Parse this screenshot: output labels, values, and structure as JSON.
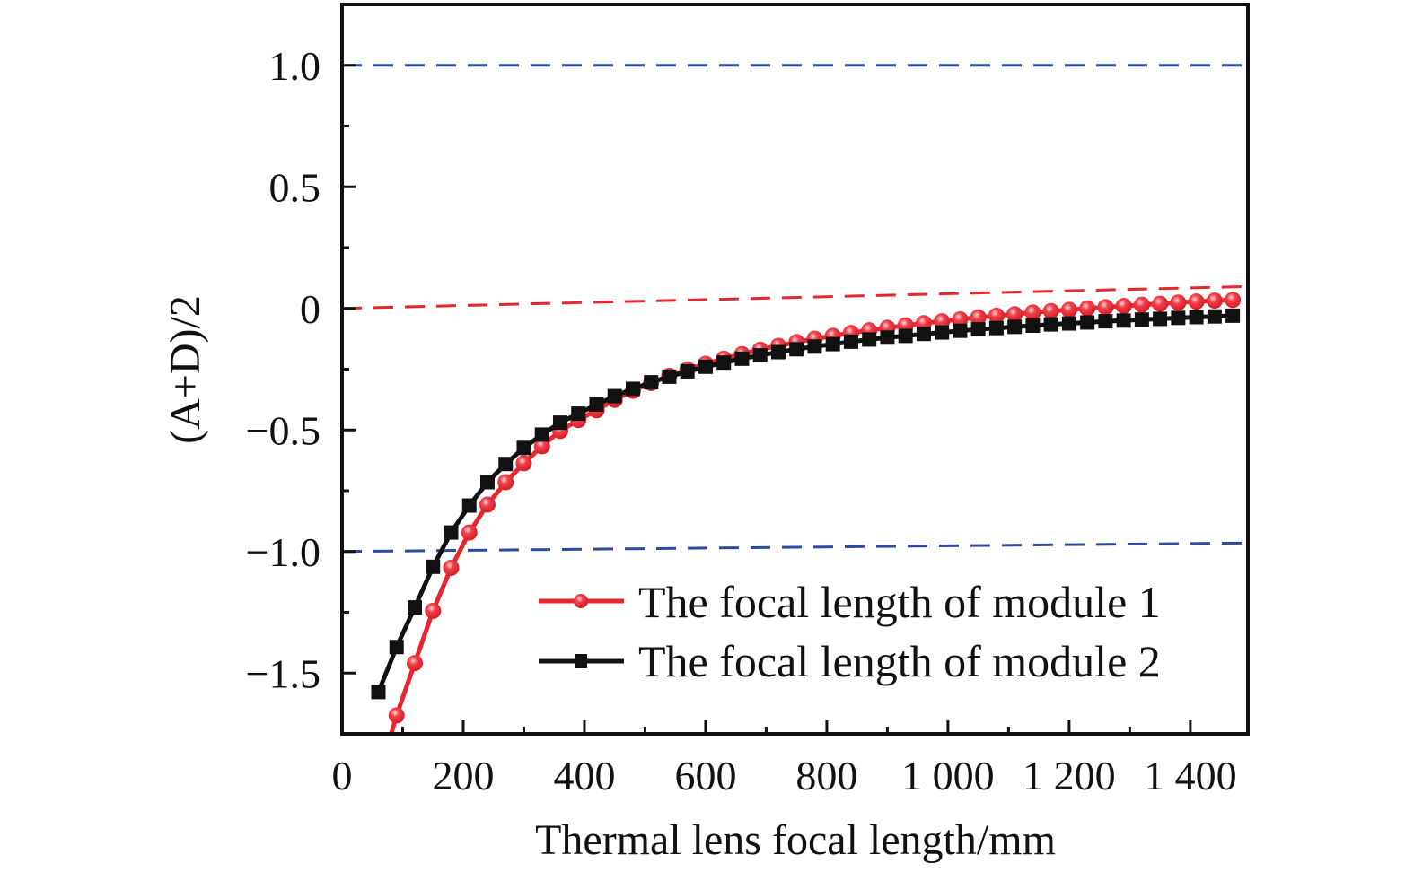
{
  "chart_data": {
    "type": "line",
    "title": "",
    "xlabel": "Thermal lens focal length/mm",
    "ylabel": "(A+D)/2",
    "xlim": [
      0,
      1495
    ],
    "ylim": [
      -1.75,
      1.25
    ],
    "grid": false,
    "legend_placement": "bottom-right",
    "x_ticks": [
      0,
      200,
      400,
      600,
      800,
      1000,
      1200,
      1400
    ],
    "x_tick_labels": [
      "0",
      "200",
      "400",
      "600",
      "800",
      "1 000",
      "1 200",
      "1 400"
    ],
    "y_ticks": [
      1.0,
      0.5,
      0,
      -0.5,
      -1.0,
      -1.5
    ],
    "y_tick_labels": [
      "1.0",
      "0.5",
      "0",
      "−0.5",
      "−1.0",
      "−1.5"
    ],
    "reference_lines": [
      {
        "style": "dashed",
        "color": "#2e4a9e",
        "from": [
          0,
          1.0
        ],
        "to": [
          1495,
          1.0
        ]
      },
      {
        "style": "dashed",
        "color": "#2e4a9e",
        "from": [
          0,
          -1.0
        ],
        "to": [
          1495,
          -0.965
        ]
      },
      {
        "style": "dashed",
        "color": "#e8262e",
        "from": [
          0,
          0
        ],
        "to": [
          1495,
          0.09
        ]
      }
    ],
    "series": [
      {
        "name": "The focal length of module 1",
        "color": "#e8262e",
        "marker": "circle",
        "x": [
          60,
          90,
          120,
          150,
          180,
          210,
          240,
          270,
          300,
          330,
          360,
          390,
          420,
          450,
          480,
          510,
          540,
          570,
          600,
          630,
          660,
          690,
          720,
          750,
          780,
          810,
          840,
          870,
          900,
          930,
          960,
          990,
          1020,
          1050,
          1080,
          1110,
          1140,
          1170,
          1200,
          1230,
          1260,
          1290,
          1320,
          1350,
          1380,
          1410,
          1440,
          1470
        ],
        "y": [
          -1.93,
          -1.674,
          -1.459,
          -1.244,
          -1.067,
          -0.922,
          -0.807,
          -0.715,
          -0.637,
          -0.567,
          -0.504,
          -0.459,
          -0.419,
          -0.376,
          -0.339,
          -0.307,
          -0.277,
          -0.251,
          -0.228,
          -0.207,
          -0.188,
          -0.17,
          -0.154,
          -0.139,
          -0.125,
          -0.113,
          -0.101,
          -0.09,
          -0.08,
          -0.07,
          -0.061,
          -0.053,
          -0.045,
          -0.037,
          -0.03,
          -0.024,
          -0.017,
          -0.011,
          -0.006,
          0.0,
          0.005,
          0.01,
          0.015,
          0.019,
          0.024,
          0.028,
          0.032,
          0.035
        ]
      },
      {
        "name": "The focal length of module 2",
        "color": "#111111",
        "marker": "square",
        "x": [
          60,
          90,
          120,
          150,
          180,
          210,
          240,
          270,
          300,
          330,
          360,
          390,
          420,
          450,
          480,
          510,
          540,
          570,
          600,
          630,
          660,
          690,
          720,
          750,
          780,
          810,
          840,
          870,
          900,
          930,
          960,
          990,
          1020,
          1050,
          1080,
          1110,
          1140,
          1170,
          1200,
          1230,
          1260,
          1290,
          1320,
          1350,
          1380,
          1410,
          1440,
          1470
        ],
        "y": [
          -1.578,
          -1.393,
          -1.23,
          -1.063,
          -0.922,
          -0.811,
          -0.715,
          -0.64,
          -0.574,
          -0.519,
          -0.47,
          -0.433,
          -0.396,
          -0.361,
          -0.331,
          -0.304,
          -0.281,
          -0.259,
          -0.24,
          -0.223,
          -0.207,
          -0.193,
          -0.18,
          -0.168,
          -0.157,
          -0.147,
          -0.137,
          -0.128,
          -0.12,
          -0.113,
          -0.105,
          -0.099,
          -0.092,
          -0.086,
          -0.081,
          -0.076,
          -0.071,
          -0.066,
          -0.062,
          -0.058,
          -0.053,
          -0.05,
          -0.046,
          -0.043,
          -0.039,
          -0.036,
          -0.033,
          -0.03
        ]
      }
    ]
  }
}
